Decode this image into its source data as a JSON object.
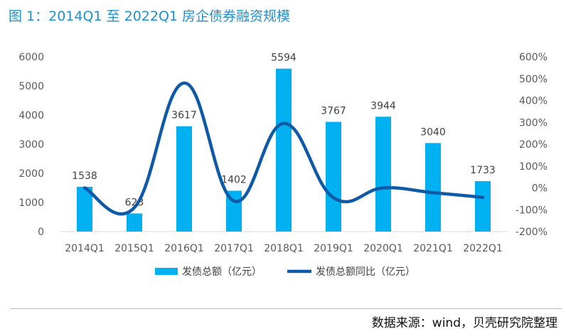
{
  "page": {
    "title": "图 1：2014Q1 至 2022Q1 房企债券融资规模",
    "source": "数据来源：wind，贝壳研究院整理"
  },
  "chart_data": {
    "type": "bar",
    "categories": [
      "2014Q1",
      "2015Q1",
      "2016Q1",
      "2017Q1",
      "2018Q1",
      "2019Q1",
      "2020Q1",
      "2021Q1",
      "2022Q1"
    ],
    "series": [
      {
        "name": "发债总额（亿元）",
        "type": "bar",
        "axis": "left",
        "color": "#00b0f0",
        "values": [
          1538,
          623,
          3617,
          1402,
          5594,
          3767,
          3944,
          3040,
          1733
        ],
        "data_labels": [
          "1538",
          "623",
          "3617",
          "1402",
          "5594",
          "3767",
          "3944",
          "3040",
          "1733"
        ]
      },
      {
        "name": "发债总额同比（亿元）",
        "type": "line",
        "axis": "right",
        "color": "#0e5aa7",
        "smooth": true,
        "values": [
          0,
          -90,
          480,
          -60,
          295,
          -45,
          0,
          -22,
          -43
        ]
      }
    ],
    "y_left": {
      "min": 0,
      "max": 6000,
      "ticks": [
        "0",
        "1000",
        "2000",
        "3000",
        "4000",
        "5000",
        "6000"
      ]
    },
    "y_right": {
      "min": -200,
      "max": 600,
      "ticks": [
        "-200%",
        "-100%",
        "0%",
        "100%",
        "200%",
        "300%",
        "400%",
        "500%",
        "600%"
      ]
    },
    "grid": false,
    "legend_position": "bottom"
  }
}
